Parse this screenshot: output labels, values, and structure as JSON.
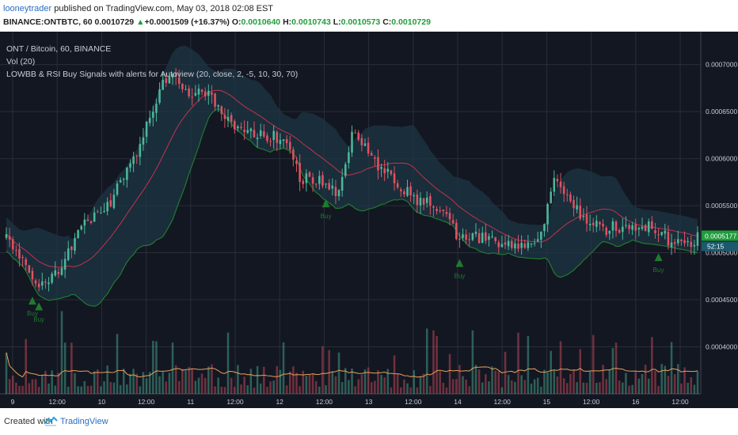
{
  "header": {
    "publisher": "looneytrader",
    "published_text": " published on TradingView.com, May 03, 2018 02:08 EST",
    "symbol": "BINANCE:ONTBTC, 60",
    "last": "0.0010729",
    "change_arrow": "▲",
    "change": "+0.0001509 (+16.37%)",
    "o_label": "O:",
    "o_value": "0.0010640",
    "h_label": "H:",
    "h_value": "0.0010743",
    "l_label": "L:",
    "l_value": "0.0010573",
    "c_label": "C:",
    "c_value": "0.0010729"
  },
  "legend": {
    "line1": "ONT / Bitcoin, 60, BINANCE",
    "line2": "Vol (20)",
    "line3": "LOWBB & RSI Buy Signals with alerts for Autoview (20, close, 2, -5, 10, 30, 70)"
  },
  "footer": {
    "created_with": "Created with",
    "brand": "TradingView"
  },
  "colors": {
    "background": "#131722",
    "up": "#4db89a",
    "down": "#e05261",
    "band_fill": "#1e3544",
    "basis": "#c2334a",
    "lower_band": "#1f7a2e",
    "volume_ma": "#e8a15a",
    "signal": "#1f7a2e",
    "price_label": "#1f9d3b"
  },
  "chart_data": {
    "type": "candlestick",
    "price_axis_ticks": [
      "0.0007000",
      "0.0006500",
      "0.0006000",
      "0.0005500",
      "0.0005000",
      "0.0004500",
      "0.0004000"
    ],
    "time_axis_ticks": [
      "9",
      "12:00",
      "10",
      "12:00",
      "11",
      "12:00",
      "12",
      "12:00",
      "13",
      "12:00",
      "14",
      "12:00",
      "15",
      "12:00",
      "16",
      "12:00"
    ],
    "last_price_label": "0.0005177",
    "countdown_label": "52:15",
    "ylim": [
      0.00035,
      0.000735
    ],
    "close_anchors": [
      [
        0,
        0.000516
      ],
      [
        6,
        0.00049
      ],
      [
        10,
        0.000465
      ],
      [
        16,
        0.000482
      ],
      [
        24,
        0.00053
      ],
      [
        32,
        0.000555
      ],
      [
        40,
        0.00061
      ],
      [
        48,
        0.00068
      ],
      [
        52,
        0.00069
      ],
      [
        56,
        0.000665
      ],
      [
        60,
        0.000675
      ],
      [
        66,
        0.00065
      ],
      [
        72,
        0.00063
      ],
      [
        80,
        0.000625
      ],
      [
        86,
        0.00062
      ],
      [
        90,
        0.00058
      ],
      [
        96,
        0.000575
      ],
      [
        102,
        0.00056
      ],
      [
        106,
        0.00063
      ],
      [
        112,
        0.0006
      ],
      [
        118,
        0.00058
      ],
      [
        126,
        0.000555
      ],
      [
        132,
        0.00055
      ],
      [
        138,
        0.00052
      ],
      [
        146,
        0.000515
      ],
      [
        154,
        0.00051
      ],
      [
        160,
        0.000505
      ],
      [
        164,
        0.00052
      ],
      [
        168,
        0.00058
      ],
      [
        172,
        0.000555
      ],
      [
        176,
        0.00054
      ],
      [
        182,
        0.000525
      ],
      [
        190,
        0.000528
      ],
      [
        198,
        0.00053
      ],
      [
        204,
        0.00051
      ],
      [
        208,
        0.000505
      ],
      [
        212,
        0.000515
      ]
    ],
    "buy_signals": [
      {
        "index": 8,
        "label": "Buy"
      },
      {
        "index": 10,
        "label": "Buy"
      },
      {
        "index": 98,
        "label": "Buy"
      },
      {
        "index": 139,
        "label": "Buy"
      },
      {
        "index": 200,
        "label": "Buy"
      }
    ]
  }
}
